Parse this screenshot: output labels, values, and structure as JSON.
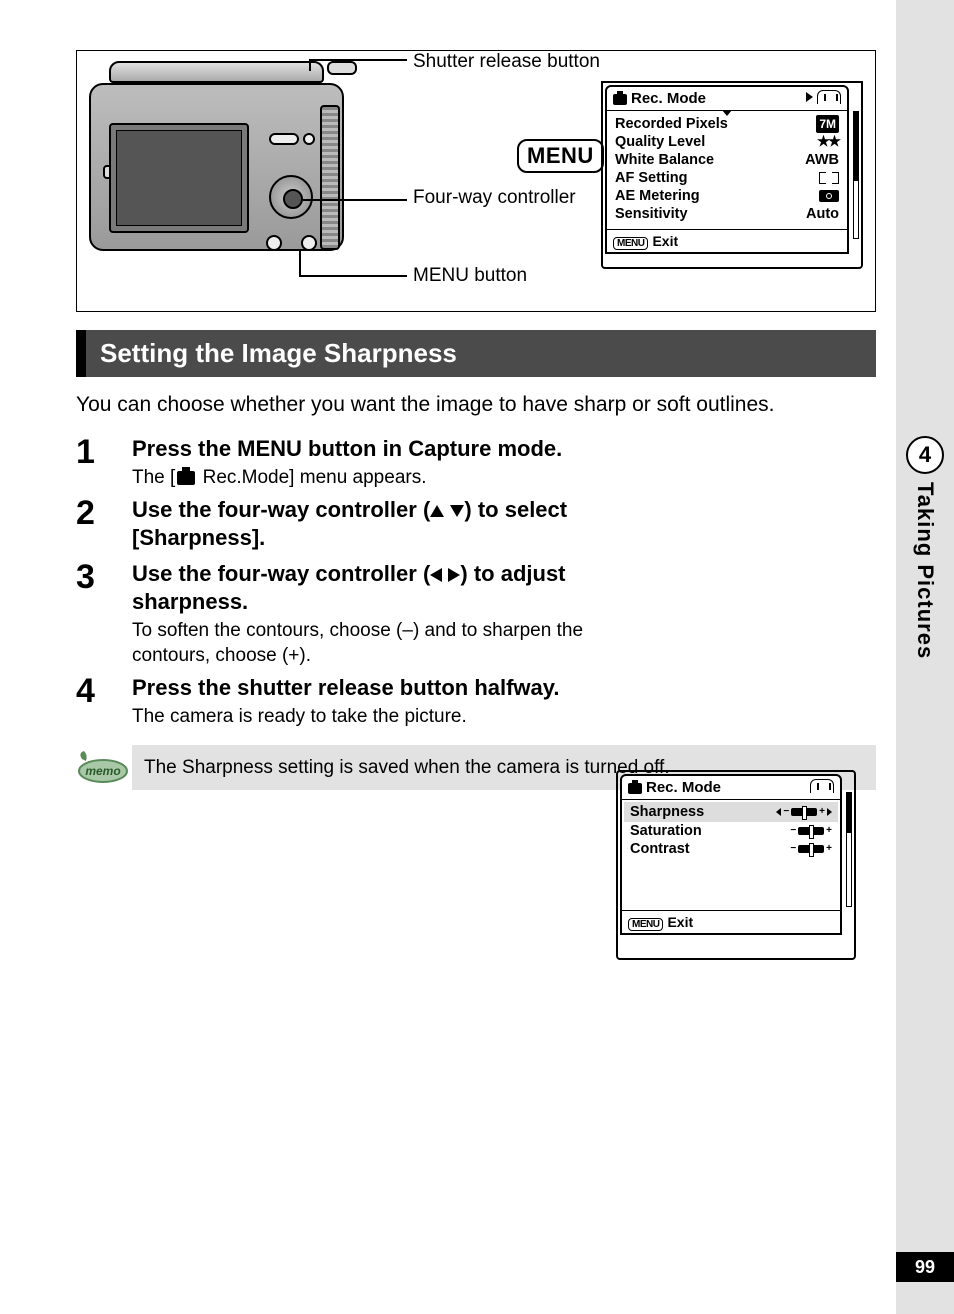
{
  "side": {
    "chapter_num": "4",
    "chapter_title": "Taking Pictures",
    "page_num": "99"
  },
  "diagram": {
    "labels": {
      "shutter": "Shutter release button",
      "fourway": "Four-way controller",
      "menu": "MENU button"
    },
    "menu_badge": "MENU"
  },
  "lcd1": {
    "title": "Rec. Mode",
    "rows": [
      {
        "label": "Recorded Pixels",
        "value": "7M",
        "kind": "pix"
      },
      {
        "label": "Quality Level",
        "value": "★★",
        "kind": "stars"
      },
      {
        "label": "White Balance",
        "value": "AWB",
        "kind": "text"
      },
      {
        "label": "AF Setting",
        "value": "",
        "kind": "af"
      },
      {
        "label": "AE Metering",
        "value": "",
        "kind": "ae"
      },
      {
        "label": "Sensitivity",
        "value": "Auto",
        "kind": "text"
      }
    ],
    "foot_chip": "MENU",
    "foot_label": "Exit"
  },
  "section_title": "Setting the Image Sharpness",
  "intro": "You can choose whether you want the image to have sharp or soft outlines.",
  "steps": {
    "s1_title": "Press the MENU button in Capture mode.",
    "s1_sub_a": "The [",
    "s1_sub_b": " Rec.Mode] menu appears.",
    "s2_title_a": "Use the four-way controller (",
    "s2_title_b": ") to select [Sharpness].",
    "s3_title_a": "Use the four-way controller (",
    "s3_title_b": ") to adjust sharpness.",
    "s3_sub": "To soften the contours, choose (–) and to sharpen the contours, choose (+).",
    "s4_title": "Press the shutter release button halfway.",
    "s4_sub": "The camera is ready to take the picture."
  },
  "lcd2": {
    "title": "Rec. Mode",
    "rows": [
      "Sharpness",
      "Saturation",
      "Contrast"
    ],
    "foot_chip": "MENU",
    "foot_label": "Exit"
  },
  "memo": {
    "label": "memo",
    "text": "The Sharpness setting is saved when the camera is turned off."
  }
}
